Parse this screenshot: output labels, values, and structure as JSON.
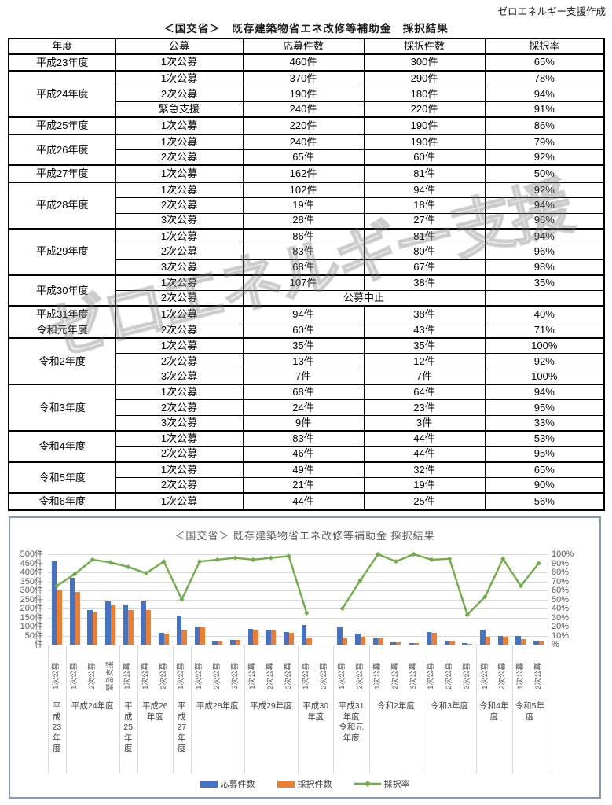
{
  "page": {
    "credit": "ゼロエネルギー支援作成",
    "title": "＜国交省＞　既存建築物省エネ改修等補助金　採択結果",
    "watermark": "ゼロエネルギー支援"
  },
  "table": {
    "headers": [
      "年度",
      "公募",
      "応募件数",
      "採択件数",
      "採択率"
    ],
    "cancelled_note": "公募中止",
    "groups": [
      {
        "year_lines": [
          "平成23年度"
        ],
        "rows": [
          {
            "round": "1次公募",
            "apps": "460件",
            "adopted": "300件",
            "rate": "65%"
          }
        ]
      },
      {
        "year_lines": [
          "平成24年度"
        ],
        "rows": [
          {
            "round": "1次公募",
            "apps": "370件",
            "adopted": "290件",
            "rate": "78%"
          },
          {
            "round": "2次公募",
            "apps": "190件",
            "adopted": "180件",
            "rate": "94%"
          },
          {
            "round": "緊急支援",
            "apps": "240件",
            "adopted": "220件",
            "rate": "91%"
          }
        ]
      },
      {
        "year_lines": [
          "平成25年度"
        ],
        "rows": [
          {
            "round": "1次公募",
            "apps": "220件",
            "adopted": "190件",
            "rate": "86%"
          }
        ]
      },
      {
        "year_lines": [
          "平成26年度"
        ],
        "rows": [
          {
            "round": "1次公募",
            "apps": "240件",
            "adopted": "190件",
            "rate": "79%"
          },
          {
            "round": "2次公募",
            "apps": "65件",
            "adopted": "60件",
            "rate": "92%"
          }
        ]
      },
      {
        "year_lines": [
          "平成27年度"
        ],
        "rows": [
          {
            "round": "1次公募",
            "apps": "162件",
            "adopted": "81件",
            "rate": "50%"
          }
        ]
      },
      {
        "year_lines": [
          "平成28年度"
        ],
        "rows": [
          {
            "round": "1次公募",
            "apps": "102件",
            "adopted": "94件",
            "rate": "92%"
          },
          {
            "round": "2次公募",
            "apps": "19件",
            "adopted": "18件",
            "rate": "94%"
          },
          {
            "round": "3次公募",
            "apps": "28件",
            "adopted": "27件",
            "rate": "96%"
          }
        ]
      },
      {
        "year_lines": [
          "平成29年度"
        ],
        "rows": [
          {
            "round": "1次公募",
            "apps": "86件",
            "adopted": "81件",
            "rate": "94%"
          },
          {
            "round": "2次公募",
            "apps": "83件",
            "adopted": "80件",
            "rate": "96%"
          },
          {
            "round": "3次公募",
            "apps": "68件",
            "adopted": "67件",
            "rate": "98%"
          }
        ]
      },
      {
        "year_lines": [
          "平成30年度"
        ],
        "rows": [
          {
            "round": "1次公募",
            "apps": "107件",
            "adopted": "38件",
            "rate": "35%"
          },
          {
            "round": "2次公募",
            "cancelled": true,
            "rate": ""
          }
        ]
      },
      {
        "year_lines": [
          "平成31年度",
          "令和元年度"
        ],
        "rows": [
          {
            "round": "1次公募",
            "apps": "94件",
            "adopted": "38件",
            "rate": "40%"
          },
          {
            "round": "2次公募",
            "apps": "60件",
            "adopted": "43件",
            "rate": "71%"
          }
        ]
      },
      {
        "year_lines": [
          "令和2年度"
        ],
        "rows": [
          {
            "round": "1次公募",
            "apps": "35件",
            "adopted": "35件",
            "rate": "100%"
          },
          {
            "round": "2次公募",
            "apps": "13件",
            "adopted": "12件",
            "rate": "92%"
          },
          {
            "round": "3次公募",
            "apps": "7件",
            "adopted": "7件",
            "rate": "100%"
          }
        ]
      },
      {
        "year_lines": [
          "令和3年度"
        ],
        "rows": [
          {
            "round": "1次公募",
            "apps": "68件",
            "adopted": "64件",
            "rate": "94%"
          },
          {
            "round": "2次公募",
            "apps": "24件",
            "adopted": "23件",
            "rate": "95%"
          },
          {
            "round": "3次公募",
            "apps": "9件",
            "adopted": "3件",
            "rate": "33%"
          }
        ]
      },
      {
        "year_lines": [
          "令和4年度"
        ],
        "rows": [
          {
            "round": "1次公募",
            "apps": "83件",
            "adopted": "44件",
            "rate": "53%"
          },
          {
            "round": "2次公募",
            "apps": "46件",
            "adopted": "44件",
            "rate": "95%"
          }
        ]
      },
      {
        "year_lines": [
          "令和5年度"
        ],
        "rows": [
          {
            "round": "1次公募",
            "apps": "49件",
            "adopted": "32件",
            "rate": "65%"
          },
          {
            "round": "2次公募",
            "apps": "21件",
            "adopted": "19件",
            "rate": "90%"
          }
        ]
      },
      {
        "year_lines": [
          "令和6年度"
        ],
        "rows": [
          {
            "round": "1次公募",
            "apps": "44件",
            "adopted": "25件",
            "rate": "56%"
          }
        ]
      }
    ]
  },
  "chart_data": {
    "type": "bar",
    "title": "＜国交省＞ 既存建築物省エネ改修等補助金 採択結果",
    "categories": [
      "1次公募",
      "1次公募",
      "2次公募",
      "緊急支援",
      "1次公募",
      "1次公募",
      "2次公募",
      "1次公募",
      "1次公募",
      "2次公募",
      "3次公募",
      "1次公募",
      "2次公募",
      "3次公募",
      "1次公募",
      "2次公募",
      "1次公募",
      "2次公募",
      "1次公募",
      "2次公募",
      "3次公募",
      "1次公募",
      "2次公募",
      "3次公募",
      "1次公募",
      "2次公募",
      "1次公募",
      "2次公募"
    ],
    "groups": [
      {
        "label_lines": [
          "平",
          "成",
          "23",
          "年",
          "度"
        ],
        "span": 1
      },
      {
        "label_lines": [
          "平成24年度"
        ],
        "span": 3
      },
      {
        "label_lines": [
          "平",
          "成",
          "25",
          "年",
          "度"
        ],
        "span": 1
      },
      {
        "label_lines": [
          "平成26",
          "年度"
        ],
        "span": 2
      },
      {
        "label_lines": [
          "平",
          "成",
          "27",
          "年",
          "度"
        ],
        "span": 1
      },
      {
        "label_lines": [
          "平成28年度"
        ],
        "span": 3
      },
      {
        "label_lines": [
          "平成29年度"
        ],
        "span": 3
      },
      {
        "label_lines": [
          "平成30",
          "年度"
        ],
        "span": 2
      },
      {
        "label_lines": [
          "平成31",
          "年度",
          "令和元",
          "年度"
        ],
        "span": 2
      },
      {
        "label_lines": [
          "令和2年度"
        ],
        "span": 3
      },
      {
        "label_lines": [
          "令和3年度"
        ],
        "span": 3
      },
      {
        "label_lines": [
          "令和4年",
          "度"
        ],
        "span": 2
      },
      {
        "label_lines": [
          "令和5年",
          "度"
        ],
        "span": 2
      }
    ],
    "series": [
      {
        "name": "応募件数",
        "type": "bar",
        "color": "#4472C4",
        "values": [
          460,
          370,
          190,
          240,
          220,
          240,
          65,
          162,
          102,
          19,
          28,
          86,
          83,
          68,
          107,
          null,
          94,
          60,
          35,
          13,
          7,
          68,
          24,
          9,
          83,
          46,
          49,
          21
        ]
      },
      {
        "name": "採択件数",
        "type": "bar",
        "color": "#ED7D31",
        "values": [
          300,
          290,
          180,
          220,
          190,
          190,
          60,
          81,
          94,
          18,
          27,
          81,
          80,
          67,
          38,
          null,
          38,
          43,
          35,
          12,
          7,
          64,
          23,
          3,
          44,
          44,
          32,
          19
        ]
      },
      {
        "name": "採択率",
        "type": "line",
        "color": "#70AD47",
        "values": [
          65,
          78,
          94,
          91,
          86,
          79,
          92,
          50,
          92,
          94,
          96,
          94,
          96,
          98,
          35,
          null,
          40,
          71,
          100,
          92,
          100,
          94,
          95,
          33,
          53,
          95,
          65,
          90
        ]
      }
    ],
    "left_axis": {
      "max": 500,
      "ticks": [
        "500件",
        "450件",
        "400件",
        "350件",
        "300件",
        "250件",
        "200件",
        "150件",
        "100件",
        "50件",
        "件"
      ]
    },
    "right_axis": {
      "max": 100,
      "ticks": [
        "100%",
        "90%",
        "80%",
        "70%",
        "60%",
        "50%",
        "40%",
        "30%",
        "20%",
        "10%",
        "%"
      ]
    },
    "grid": true,
    "legend_position": "bottom",
    "ylim": [
      0,
      500
    ],
    "y2lim": [
      0,
      100
    ]
  }
}
